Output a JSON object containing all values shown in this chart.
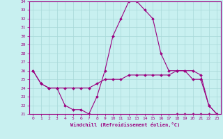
{
  "xlabel": "Windchill (Refroidissement éolien,°C)",
  "x": [
    0,
    1,
    2,
    3,
    4,
    5,
    6,
    7,
    8,
    9,
    10,
    11,
    12,
    13,
    14,
    15,
    16,
    17,
    18,
    19,
    20,
    21,
    22,
    23
  ],
  "line1": [
    26,
    24.5,
    24,
    24,
    22,
    21.5,
    21.5,
    21,
    23,
    26,
    30,
    32,
    34,
    34,
    33,
    32,
    28,
    26,
    26,
    26,
    25,
    25,
    22,
    21
  ],
  "line2": [
    26,
    24.5,
    24,
    24,
    24,
    24,
    24,
    24,
    24.5,
    25,
    25,
    25,
    25.5,
    25.5,
    25.5,
    25.5,
    25.5,
    25.5,
    26,
    26,
    26,
    25.5,
    22,
    21
  ],
  "line3": [
    null,
    null,
    null,
    null,
    null,
    null,
    null,
    null,
    null,
    null,
    null,
    null,
    null,
    null,
    null,
    null,
    null,
    null,
    21,
    21,
    21,
    21,
    21,
    21
  ],
  "line_color": "#9b0080",
  "bg_color": "#c8f0f0",
  "grid_color": "#a8d8d8",
  "ylim": [
    21,
    34
  ],
  "yticks": [
    21,
    22,
    23,
    24,
    25,
    26,
    27,
    28,
    29,
    30,
    31,
    32,
    33,
    34
  ],
  "xticks": [
    0,
    1,
    2,
    3,
    4,
    5,
    6,
    7,
    8,
    9,
    10,
    11,
    12,
    13,
    14,
    15,
    16,
    17,
    18,
    19,
    20,
    21,
    22,
    23
  ],
  "markersize": 2.0,
  "linewidth": 0.8
}
